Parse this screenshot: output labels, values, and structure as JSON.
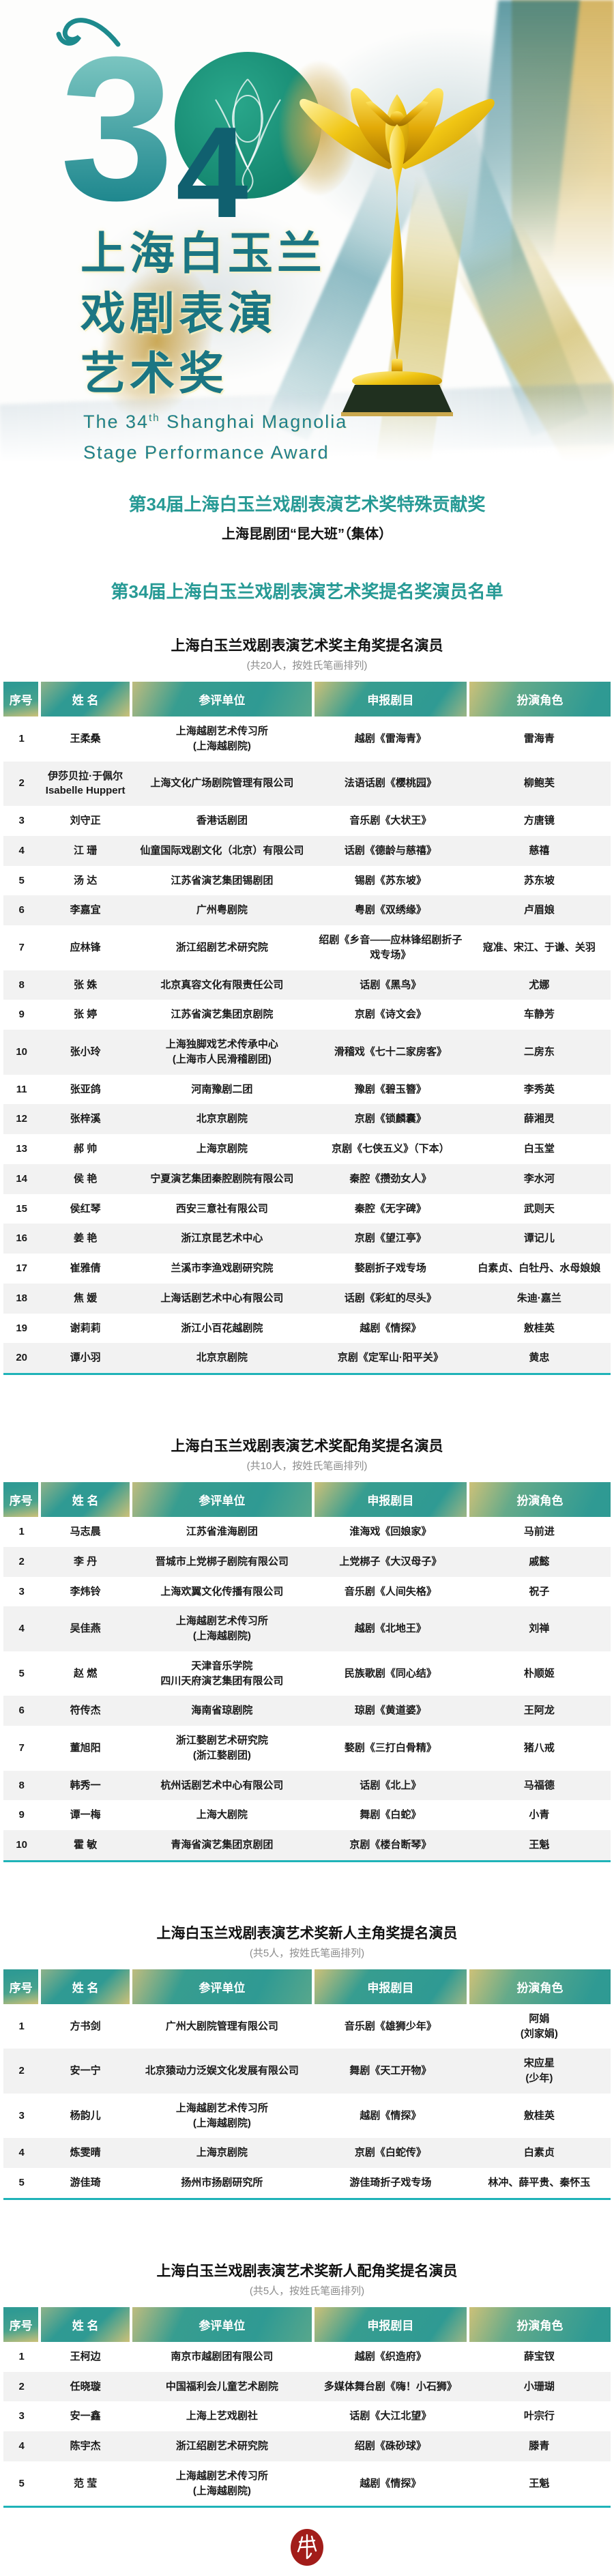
{
  "header": {
    "logo_number_3": "3",
    "logo_number_4": "4",
    "title_lines": [
      "上海白玉兰",
      "戏剧表演",
      "艺术奖"
    ],
    "english_pre": "The 34",
    "english_sup": "th",
    "english_post": " Shanghai Magnolia",
    "english_line2": "Stage Performance Award"
  },
  "special_award": {
    "title": "第34届上海白玉兰戏剧表演艺术奖特殊贡献奖",
    "recipient": "上海昆剧团“昆大班”（集体）"
  },
  "nomination_list_title": "第34届上海白玉兰戏剧表演艺术奖提名奖演员名单",
  "columns": [
    "序号",
    "姓 名",
    "参评单位",
    "申报剧目",
    "扮演角色"
  ],
  "sections": [
    {
      "title": "上海白玉兰戏剧表演艺术奖主角奖提名演员",
      "note": "(共20人，按姓氏笔画排列)",
      "rows": [
        [
          "1",
          "王柔桑",
          "上海越剧艺术传习所\n(上海越剧院)",
          "越剧《雷海青》",
          "雷海青"
        ],
        [
          "2",
          "伊莎贝拉·于佩尔\nIsabelle Huppert",
          "上海文化广场剧院管理有限公司",
          "法语话剧《樱桃园》",
          "柳鲍芙"
        ],
        [
          "3",
          "刘守正",
          "香港话剧团",
          "音乐剧《大状王》",
          "方唐镜"
        ],
        [
          "4",
          "江 珊",
          "仙童国际戏剧文化（北京）有限公司",
          "话剧《德龄与慈禧》",
          "慈禧"
        ],
        [
          "5",
          "汤 达",
          "江苏省演艺集团锡剧团",
          "锡剧《苏东坡》",
          "苏东坡"
        ],
        [
          "6",
          "李嘉宜",
          "广州粤剧院",
          "粤剧《双绣缘》",
          "卢眉娘"
        ],
        [
          "7",
          "应林锋",
          "浙江绍剧艺术研究院",
          "绍剧《乡音——应林锋绍剧折子戏专场》",
          "寇准、宋江、于谦、关羽"
        ],
        [
          "8",
          "张 姝",
          "北京真容文化有限责任公司",
          "话剧《黑鸟》",
          "尤娜"
        ],
        [
          "9",
          "张 婷",
          "江苏省演艺集团京剧院",
          "京剧《诗文会》",
          "车静芳"
        ],
        [
          "10",
          "张小玲",
          "上海独脚戏艺术传承中心\n(上海市人民滑稽剧团)",
          "滑稽戏《七十二家房客》",
          "二房东"
        ],
        [
          "11",
          "张亚鸽",
          "河南豫剧二团",
          "豫剧《碧玉簪》",
          "李秀英"
        ],
        [
          "12",
          "张梓溪",
          "北京京剧院",
          "京剧《锁麟囊》",
          "薛湘灵"
        ],
        [
          "13",
          "郝 帅",
          "上海京剧院",
          "京剧《七侠五义》（下本）",
          "白玉堂"
        ],
        [
          "14",
          "侯 艳",
          "宁夏演艺集团秦腔剧院有限公司",
          "秦腔《攒劲女人》",
          "李水河"
        ],
        [
          "15",
          "侯红琴",
          "西安三意社有限公司",
          "秦腔《无字碑》",
          "武则天"
        ],
        [
          "16",
          "姜 艳",
          "浙江京昆艺术中心",
          "京剧《望江亭》",
          "谭记儿"
        ],
        [
          "17",
          "崔雅倩",
          "兰溪市李渔戏剧研究院",
          "婺剧折子戏专场",
          "白素贞、白牡丹、水母娘娘"
        ],
        [
          "18",
          "焦 媛",
          "上海话剧艺术中心有限公司",
          "话剧《彩虹的尽头》",
          "朱迪·嘉兰"
        ],
        [
          "19",
          "谢莉莉",
          "浙江小百花越剧院",
          "越剧《情探》",
          "敫桂英"
        ],
        [
          "20",
          "谭小羽",
          "北京京剧院",
          "京剧《定军山·阳平关》",
          "黄忠"
        ]
      ]
    },
    {
      "title": "上海白玉兰戏剧表演艺术奖配角奖提名演员",
      "note": "(共10人，按姓氏笔画排列)",
      "rows": [
        [
          "1",
          "马志晨",
          "江苏省淮海剧团",
          "淮海戏《回娘家》",
          "马前进"
        ],
        [
          "2",
          "李 丹",
          "晋城市上党梆子剧院有限公司",
          "上党梆子《大汉母子》",
          "戚懿"
        ],
        [
          "3",
          "李炜铃",
          "上海欢翼文化传播有限公司",
          "音乐剧《人间失格》",
          "祝子"
        ],
        [
          "4",
          "吴佳燕",
          "上海越剧艺术传习所\n(上海越剧院)",
          "越剧《北地王》",
          "刘禅"
        ],
        [
          "5",
          "赵 燃",
          "天津音乐学院\n四川天府演艺集团有限公司",
          "民族歌剧《同心结》",
          "朴顺姬"
        ],
        [
          "6",
          "符传杰",
          "海南省琼剧院",
          "琼剧《黄道婆》",
          "王阿龙"
        ],
        [
          "7",
          "董旭阳",
          "浙江婺剧艺术研究院\n(浙江婺剧团)",
          "婺剧《三打白骨精》",
          "猪八戒"
        ],
        [
          "8",
          "韩秀一",
          "杭州话剧艺术中心有限公司",
          "话剧《北上》",
          "马福德"
        ],
        [
          "9",
          "谭一梅",
          "上海大剧院",
          "舞剧《白蛇》",
          "小青"
        ],
        [
          "10",
          "霍 敏",
          "青海省演艺集团京剧团",
          "京剧《楼台断琴》",
          "王魁"
        ]
      ]
    },
    {
      "title": "上海白玉兰戏剧表演艺术奖新人主角奖提名演员",
      "note": "(共5人，按姓氏笔画排列)",
      "rows": [
        [
          "1",
          "方书剑",
          "广州大剧院管理有限公司",
          "音乐剧《雄狮少年》",
          "阿娟\n(刘家娟)"
        ],
        [
          "2",
          "安一宁",
          "北京猿动力泛娱文化发展有限公司",
          "舞剧《天工开物》",
          "宋应星\n(少年)"
        ],
        [
          "3",
          "杨韵儿",
          "上海越剧艺术传习所\n(上海越剧院)",
          "越剧《情探》",
          "敫桂英"
        ],
        [
          "4",
          "炼雯晴",
          "上海京剧院",
          "京剧《白蛇传》",
          "白素贞"
        ],
        [
          "5",
          "游佳琦",
          "扬州市扬剧研究所",
          "游佳琦折子戏专场",
          "林冲、薛平贵、秦怀玉"
        ]
      ]
    },
    {
      "title": "上海白玉兰戏剧表演艺术奖新人配角奖提名演员",
      "note": "(共5人，按姓氏笔画排列)",
      "rows": [
        [
          "1",
          "王柯边",
          "南京市越剧团有限公司",
          "越剧《织造府》",
          "薛宝钗"
        ],
        [
          "2",
          "任晓璇",
          "中国福利会儿童艺术剧院",
          "多媒体舞台剧《嗨！小石狮》",
          "小珊瑚"
        ],
        [
          "3",
          "安一鑫",
          "上海上艺戏剧社",
          "话剧《大江北望》",
          "叶宗行"
        ],
        [
          "4",
          "陈宇杰",
          "浙江绍剧艺术研究院",
          "绍剧《硃砂球》",
          "滕青"
        ],
        [
          "5",
          "范 莹",
          "上海越剧艺术传习所\n(上海越剧院)",
          "越剧《情探》",
          "王魁"
        ]
      ]
    }
  ],
  "colors": {
    "title_teal": "#279a95",
    "hero_title_teal": "#1b7683",
    "header_gradient_teal": "#2f9a93",
    "header_gradient_gold": "#cdc178",
    "row_alt_gray": "#f2f2f2",
    "table_bottom_border": "#1fb3b8",
    "seal_red": "#a21d1a",
    "trophy_gold": "#e8b514",
    "logo_circle_green": "#17907a"
  }
}
